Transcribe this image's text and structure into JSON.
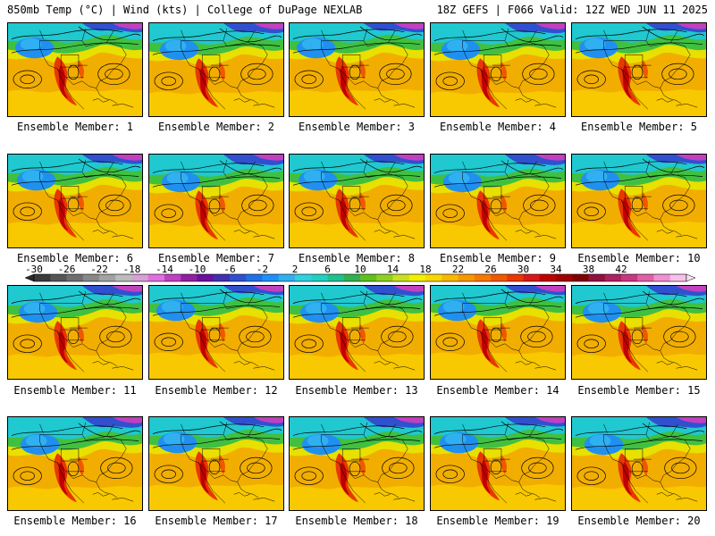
{
  "header": {
    "title": "850mb Temp (°C) | Wind (kts) | College of DuPage NEXLAB",
    "run_info": "18Z GEFS | F066 Valid: 12Z WED JUN 11 2025"
  },
  "panels": [
    {
      "label": "Ensemble Member: 1"
    },
    {
      "label": "Ensemble Member: 2"
    },
    {
      "label": "Ensemble Member: 3"
    },
    {
      "label": "Ensemble Member: 4"
    },
    {
      "label": "Ensemble Member: 5"
    },
    {
      "label": "Ensemble Member: 6"
    },
    {
      "label": "Ensemble Member: 7"
    },
    {
      "label": "Ensemble Member: 8"
    },
    {
      "label": "Ensemble Member: 9"
    },
    {
      "label": "Ensemble Member: 10"
    },
    {
      "label": "Ensemble Member: 11"
    },
    {
      "label": "Ensemble Member: 12"
    },
    {
      "label": "Ensemble Member: 13"
    },
    {
      "label": "Ensemble Member: 14"
    },
    {
      "label": "Ensemble Member: 15"
    },
    {
      "label": "Ensemble Member: 16"
    },
    {
      "label": "Ensemble Member: 17"
    },
    {
      "label": "Ensemble Member: 18"
    },
    {
      "label": "Ensemble Member: 19"
    },
    {
      "label": "Ensemble Member: 20"
    }
  ],
  "colorbar": {
    "tick_labels": [
      "-30",
      "-26",
      "-22",
      "-18",
      "-14",
      "-10",
      "-6",
      "-2",
      "2",
      "6",
      "10",
      "14",
      "18",
      "22",
      "26",
      "30",
      "34",
      "38",
      "42"
    ],
    "colors": [
      "#3a3a3a",
      "#555555",
      "#6e6e6e",
      "#888888",
      "#a2a2a2",
      "#bcbcbc",
      "#d6a0d6",
      "#e070e0",
      "#c040c0",
      "#9020a0",
      "#6a10a0",
      "#4030b0",
      "#3050d0",
      "#2070e8",
      "#2090f8",
      "#30b0f0",
      "#30d0e0",
      "#20d0c0",
      "#20c090",
      "#30b050",
      "#60c020",
      "#90d020",
      "#c8e020",
      "#f0f000",
      "#f8d800",
      "#f8b800",
      "#f89800",
      "#f87800",
      "#f05800",
      "#e83800",
      "#d81818",
      "#c00000",
      "#a00000",
      "#800000",
      "#901040",
      "#b02060",
      "#c83880",
      "#e060a8",
      "#f090d0",
      "#f8c0e8"
    ]
  }
}
